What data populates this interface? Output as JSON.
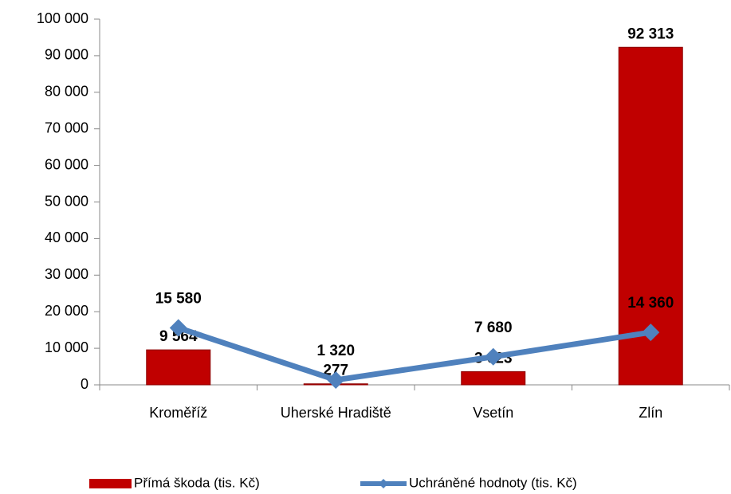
{
  "chart_data": {
    "type": "combo",
    "categories": [
      "Kroměříž",
      "Uherské Hradiště",
      "Vsetín",
      "Zlín"
    ],
    "series": [
      {
        "name": "Přímá škoda (tis. Kč)",
        "type": "bar",
        "color": "#c00000",
        "values": [
          9564,
          277,
          3623,
          92313
        ],
        "value_labels": [
          "9 564",
          "277",
          "3 623",
          "92 313"
        ]
      },
      {
        "name": "Uchráněné hodnoty (tis. Kč)",
        "type": "line",
        "color": "#4f81bd",
        "values": [
          15580,
          1320,
          7680,
          14360
        ],
        "value_labels": [
          "15 580",
          "1 320",
          "7 680",
          "14 360"
        ]
      }
    ],
    "ylim": [
      0,
      100000
    ],
    "yticks": [
      {
        "value": 0,
        "label": "0"
      },
      {
        "value": 10000,
        "label": "10 000"
      },
      {
        "value": 20000,
        "label": "20 000"
      },
      {
        "value": 30000,
        "label": "30 000"
      },
      {
        "value": 40000,
        "label": "40 000"
      },
      {
        "value": 50000,
        "label": "50 000"
      },
      {
        "value": 60000,
        "label": "60 000"
      },
      {
        "value": 70000,
        "label": "70 000"
      },
      {
        "value": 80000,
        "label": "80 000"
      },
      {
        "value": 90000,
        "label": "90 000"
      },
      {
        "value": 100000,
        "label": "100 000"
      }
    ],
    "legend": "bottom"
  }
}
